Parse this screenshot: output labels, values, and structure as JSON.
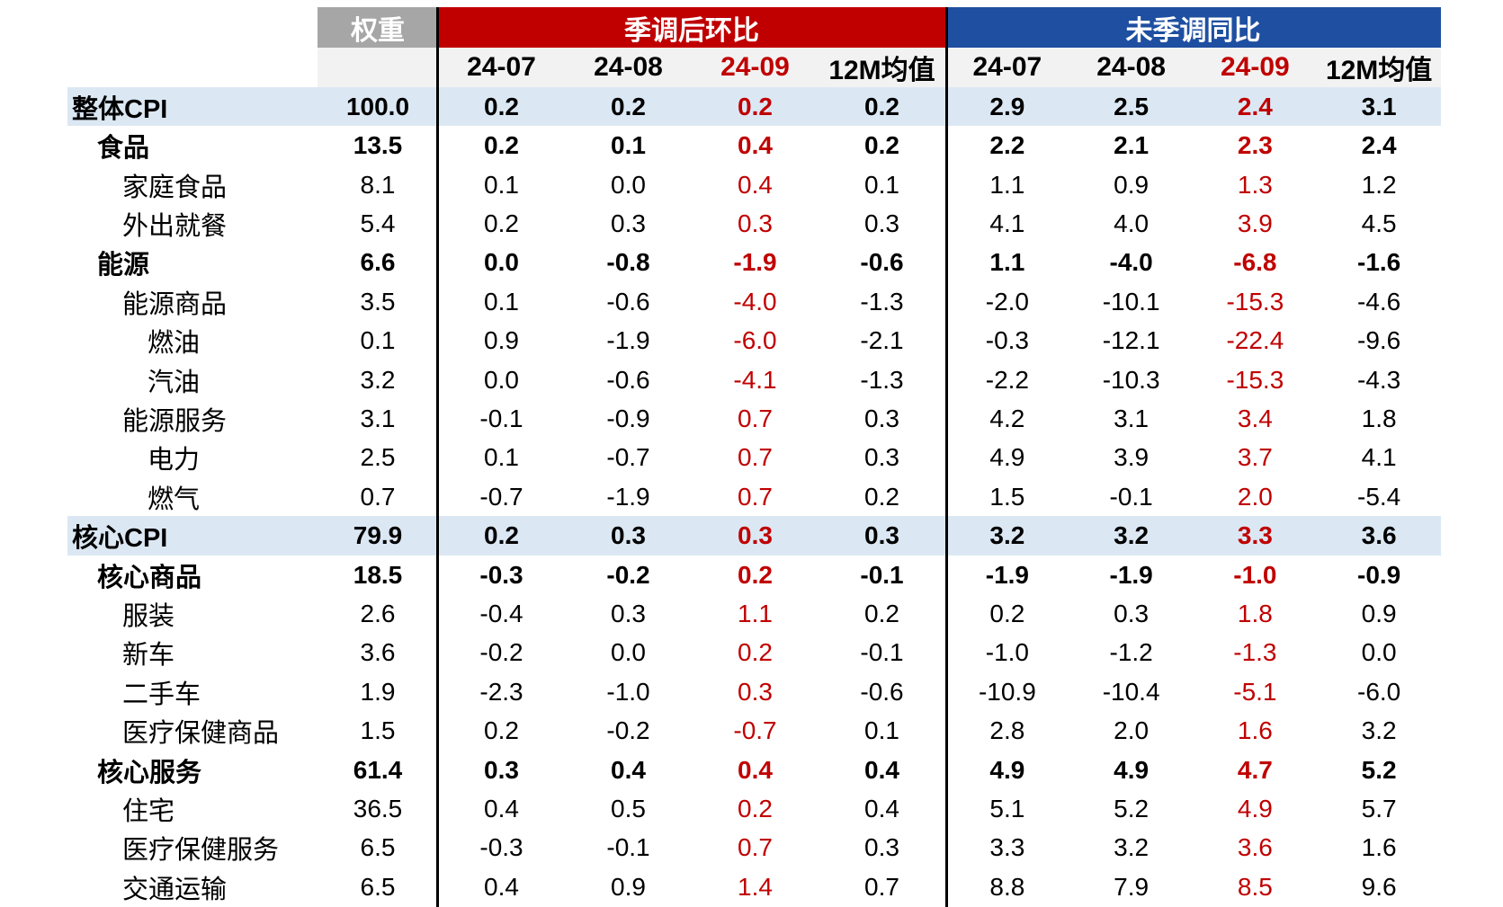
{
  "table": {
    "header": {
      "weight": "权重",
      "mom_group": "季调后环比",
      "yoy_group": "未季调同比"
    },
    "sub_headers": [
      "24-07",
      "24-08",
      "24-09",
      "12M均值"
    ],
    "colors": {
      "red_header": "#C00000",
      "blue_header": "#1E4FA1",
      "gray_header": "#A6A6A6",
      "subheader_bg": "#F2F2F2",
      "highlight_row_bg": "#DBE8F4",
      "red_text": "#C00000",
      "black_text": "#000000",
      "divider": "#000000"
    },
    "rows": [
      {
        "label": "整体CPI",
        "indent": 0,
        "bold": true,
        "highlight": true,
        "weight": "100.0",
        "mom": [
          "0.2",
          "0.2",
          "0.2",
          "0.2"
        ],
        "yoy": [
          "2.9",
          "2.5",
          "2.4",
          "3.1"
        ]
      },
      {
        "label": "食品",
        "indent": 1,
        "bold": true,
        "highlight": false,
        "weight": "13.5",
        "mom": [
          "0.2",
          "0.1",
          "0.4",
          "0.2"
        ],
        "yoy": [
          "2.2",
          "2.1",
          "2.3",
          "2.4"
        ]
      },
      {
        "label": "家庭食品",
        "indent": 2,
        "bold": false,
        "highlight": false,
        "weight": "8.1",
        "mom": [
          "0.1",
          "0.0",
          "0.4",
          "0.1"
        ],
        "yoy": [
          "1.1",
          "0.9",
          "1.3",
          "1.2"
        ]
      },
      {
        "label": "外出就餐",
        "indent": 2,
        "bold": false,
        "highlight": false,
        "weight": "5.4",
        "mom": [
          "0.2",
          "0.3",
          "0.3",
          "0.3"
        ],
        "yoy": [
          "4.1",
          "4.0",
          "3.9",
          "4.5"
        ]
      },
      {
        "label": "能源",
        "indent": 1,
        "bold": true,
        "highlight": false,
        "weight": "6.6",
        "mom": [
          "0.0",
          "-0.8",
          "-1.9",
          "-0.6"
        ],
        "yoy": [
          "1.1",
          "-4.0",
          "-6.8",
          "-1.6"
        ]
      },
      {
        "label": "能源商品",
        "indent": 2,
        "bold": false,
        "highlight": false,
        "weight": "3.5",
        "mom": [
          "0.1",
          "-0.6",
          "-4.0",
          "-1.3"
        ],
        "yoy": [
          "-2.0",
          "-10.1",
          "-15.3",
          "-4.6"
        ]
      },
      {
        "label": "燃油",
        "indent": 3,
        "bold": false,
        "highlight": false,
        "weight": "0.1",
        "mom": [
          "0.9",
          "-1.9",
          "-6.0",
          "-2.1"
        ],
        "yoy": [
          "-0.3",
          "-12.1",
          "-22.4",
          "-9.6"
        ]
      },
      {
        "label": "汽油",
        "indent": 3,
        "bold": false,
        "highlight": false,
        "weight": "3.2",
        "mom": [
          "0.0",
          "-0.6",
          "-4.1",
          "-1.3"
        ],
        "yoy": [
          "-2.2",
          "-10.3",
          "-15.3",
          "-4.3"
        ]
      },
      {
        "label": "能源服务",
        "indent": 2,
        "bold": false,
        "highlight": false,
        "weight": "3.1",
        "mom": [
          "-0.1",
          "-0.9",
          "0.7",
          "0.3"
        ],
        "yoy": [
          "4.2",
          "3.1",
          "3.4",
          "1.8"
        ]
      },
      {
        "label": "电力",
        "indent": 3,
        "bold": false,
        "highlight": false,
        "weight": "2.5",
        "mom": [
          "0.1",
          "-0.7",
          "0.7",
          "0.3"
        ],
        "yoy": [
          "4.9",
          "3.9",
          "3.7",
          "4.1"
        ]
      },
      {
        "label": "燃气",
        "indent": 3,
        "bold": false,
        "highlight": false,
        "weight": "0.7",
        "mom": [
          "-0.7",
          "-1.9",
          "0.7",
          "0.2"
        ],
        "yoy": [
          "1.5",
          "-0.1",
          "2.0",
          "-5.4"
        ]
      },
      {
        "label": "核心CPI",
        "indent": 0,
        "bold": true,
        "highlight": true,
        "weight": "79.9",
        "mom": [
          "0.2",
          "0.3",
          "0.3",
          "0.3"
        ],
        "yoy": [
          "3.2",
          "3.2",
          "3.3",
          "3.6"
        ]
      },
      {
        "label": "核心商品",
        "indent": 1,
        "bold": true,
        "highlight": false,
        "weight": "18.5",
        "mom": [
          "-0.3",
          "-0.2",
          "0.2",
          "-0.1"
        ],
        "yoy": [
          "-1.9",
          "-1.9",
          "-1.0",
          "-0.9"
        ]
      },
      {
        "label": "服装",
        "indent": 2,
        "bold": false,
        "highlight": false,
        "weight": "2.6",
        "mom": [
          "-0.4",
          "0.3",
          "1.1",
          "0.2"
        ],
        "yoy": [
          "0.2",
          "0.3",
          "1.8",
          "0.9"
        ]
      },
      {
        "label": "新车",
        "indent": 2,
        "bold": false,
        "highlight": false,
        "weight": "3.6",
        "mom": [
          "-0.2",
          "0.0",
          "0.2",
          "-0.1"
        ],
        "yoy": [
          "-1.0",
          "-1.2",
          "-1.3",
          "0.0"
        ]
      },
      {
        "label": "二手车",
        "indent": 2,
        "bold": false,
        "highlight": false,
        "weight": "1.9",
        "mom": [
          "-2.3",
          "-1.0",
          "0.3",
          "-0.6"
        ],
        "yoy": [
          "-10.9",
          "-10.4",
          "-5.1",
          "-6.0"
        ]
      },
      {
        "label": "医疗保健商品",
        "indent": 2,
        "bold": false,
        "highlight": false,
        "weight": "1.5",
        "mom": [
          "0.2",
          "-0.2",
          "-0.7",
          "0.1"
        ],
        "yoy": [
          "2.8",
          "2.0",
          "1.6",
          "3.2"
        ]
      },
      {
        "label": "核心服务",
        "indent": 1,
        "bold": true,
        "highlight": false,
        "weight": "61.4",
        "mom": [
          "0.3",
          "0.4",
          "0.4",
          "0.4"
        ],
        "yoy": [
          "4.9",
          "4.9",
          "4.7",
          "5.2"
        ]
      },
      {
        "label": "住宅",
        "indent": 2,
        "bold": false,
        "highlight": false,
        "weight": "36.5",
        "mom": [
          "0.4",
          "0.5",
          "0.2",
          "0.4"
        ],
        "yoy": [
          "5.1",
          "5.2",
          "4.9",
          "5.7"
        ]
      },
      {
        "label": "医疗保健服务",
        "indent": 2,
        "bold": false,
        "highlight": false,
        "weight": "6.5",
        "mom": [
          "-0.3",
          "-0.1",
          "0.7",
          "0.3"
        ],
        "yoy": [
          "3.3",
          "3.2",
          "3.6",
          "1.6"
        ]
      },
      {
        "label": "交通运输",
        "indent": 2,
        "bold": false,
        "highlight": false,
        "weight": "6.5",
        "mom": [
          "0.4",
          "0.9",
          "1.4",
          "0.7"
        ],
        "yoy": [
          "8.8",
          "7.9",
          "8.5",
          "9.6"
        ]
      }
    ]
  },
  "chart_data": {
    "type": "table",
    "title": "CPI 分项表：权重、季调后环比、未季调同比",
    "column_groups": [
      "权重",
      "季调后环比",
      "未季调同比"
    ],
    "columns": [
      "权重",
      "环比 24-07",
      "环比 24-08",
      "环比 24-09",
      "环比 12M均值",
      "同比 24-07",
      "同比 24-08",
      "同比 24-09",
      "同比 12M均值"
    ],
    "row_labels": [
      "整体CPI",
      "食品",
      "家庭食品",
      "外出就餐",
      "能源",
      "能源商品",
      "燃油",
      "汽油",
      "能源服务",
      "电力",
      "燃气",
      "核心CPI",
      "核心商品",
      "服装",
      "新车",
      "二手车",
      "医疗保健商品",
      "核心服务",
      "住宅",
      "医疗保健服务",
      "交通运输"
    ],
    "values": [
      [
        100.0,
        0.2,
        0.2,
        0.2,
        0.2,
        2.9,
        2.5,
        2.4,
        3.1
      ],
      [
        13.5,
        0.2,
        0.1,
        0.4,
        0.2,
        2.2,
        2.1,
        2.3,
        2.4
      ],
      [
        8.1,
        0.1,
        0.0,
        0.4,
        0.1,
        1.1,
        0.9,
        1.3,
        1.2
      ],
      [
        5.4,
        0.2,
        0.3,
        0.3,
        0.3,
        4.1,
        4.0,
        3.9,
        4.5
      ],
      [
        6.6,
        0.0,
        -0.8,
        -1.9,
        -0.6,
        1.1,
        -4.0,
        -6.8,
        -1.6
      ],
      [
        3.5,
        0.1,
        -0.6,
        -4.0,
        -1.3,
        -2.0,
        -10.1,
        -15.3,
        -4.6
      ],
      [
        0.1,
        0.9,
        -1.9,
        -6.0,
        -2.1,
        -0.3,
        -12.1,
        -22.4,
        -9.6
      ],
      [
        3.2,
        0.0,
        -0.6,
        -4.1,
        -1.3,
        -2.2,
        -10.3,
        -15.3,
        -4.3
      ],
      [
        3.1,
        -0.1,
        -0.9,
        0.7,
        0.3,
        4.2,
        3.1,
        3.4,
        1.8
      ],
      [
        2.5,
        0.1,
        -0.7,
        0.7,
        0.3,
        4.9,
        3.9,
        3.7,
        4.1
      ],
      [
        0.7,
        -0.7,
        -1.9,
        0.7,
        0.2,
        1.5,
        -0.1,
        2.0,
        -5.4
      ],
      [
        79.9,
        0.2,
        0.3,
        0.3,
        0.3,
        3.2,
        3.2,
        3.3,
        3.6
      ],
      [
        18.5,
        -0.3,
        -0.2,
        0.2,
        -0.1,
        -1.9,
        -1.9,
        -1.0,
        -0.9
      ],
      [
        2.6,
        -0.4,
        0.3,
        1.1,
        0.2,
        0.2,
        0.3,
        1.8,
        0.9
      ],
      [
        3.6,
        -0.2,
        0.0,
        0.2,
        -0.1,
        -1.0,
        -1.2,
        -1.3,
        0.0
      ],
      [
        1.9,
        -2.3,
        -1.0,
        0.3,
        -0.6,
        -10.9,
        -10.4,
        -5.1,
        -6.0
      ],
      [
        1.5,
        0.2,
        -0.2,
        -0.7,
        0.1,
        2.8,
        2.0,
        1.6,
        3.2
      ],
      [
        61.4,
        0.3,
        0.4,
        0.4,
        0.4,
        4.9,
        4.9,
        4.7,
        5.2
      ],
      [
        36.5,
        0.4,
        0.5,
        0.2,
        0.4,
        5.1,
        5.2,
        4.9,
        5.7
      ],
      [
        6.5,
        -0.3,
        -0.1,
        0.7,
        0.3,
        3.3,
        3.2,
        3.6,
        1.6
      ],
      [
        6.5,
        0.4,
        0.9,
        1.4,
        0.7,
        8.8,
        7.9,
        8.5,
        9.6
      ]
    ],
    "notes": "24-09 columns rendered in red; 整体CPI and 核心CPI rows highlighted light blue and bold; 食品/能源/核心商品/核心服务 rows bold; legend none; grid off"
  }
}
